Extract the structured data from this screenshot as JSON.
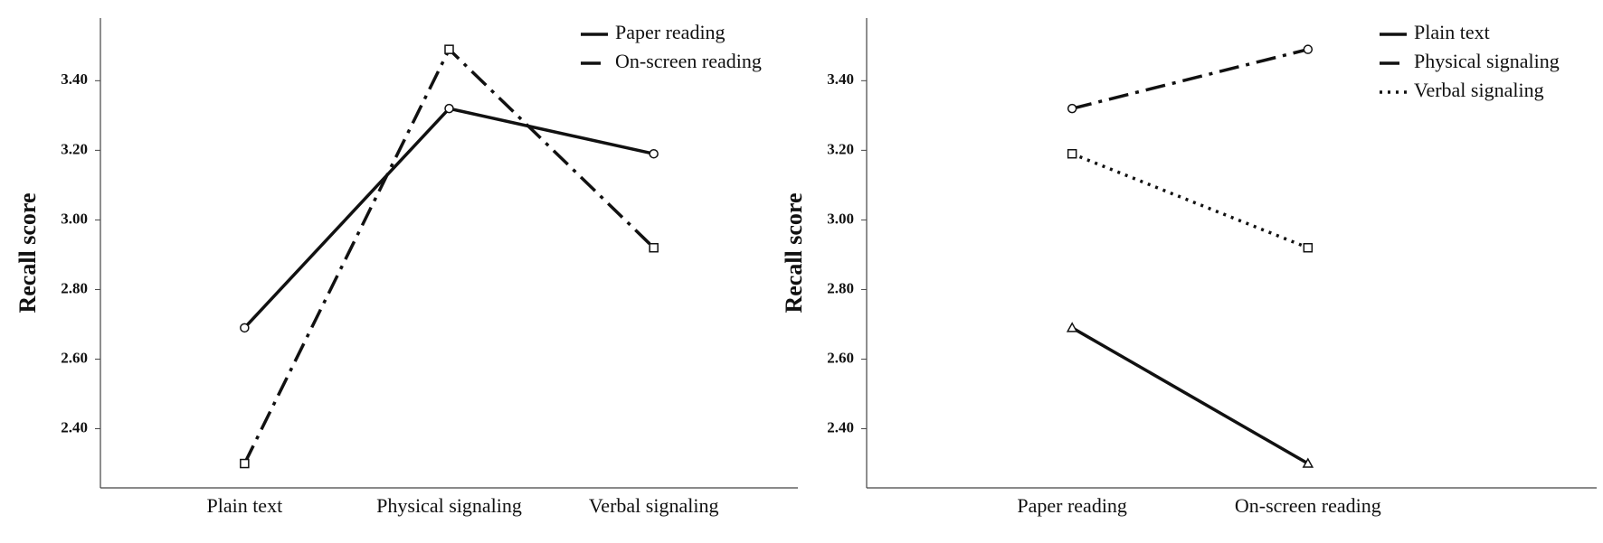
{
  "chart_data": [
    {
      "type": "line",
      "y_label": "Recall score",
      "categories": [
        "Plain text",
        "Physical signaling",
        "Verbal signaling"
      ],
      "series": [
        {
          "name": "Paper reading",
          "color": "#111111",
          "dash": "solid",
          "marker": "circle",
          "values": [
            2.69,
            3.32,
            3.19
          ]
        },
        {
          "name": "On-screen reading",
          "color": "#111111",
          "dash": "dashdot",
          "marker": "square",
          "values": [
            2.3,
            3.49,
            2.92
          ]
        }
      ],
      "ylim": [
        2.23,
        3.58
      ],
      "yticks": [
        {
          "value": 2.4,
          "label": "2.40"
        },
        {
          "value": 2.6,
          "label": "2.60"
        },
        {
          "value": 2.8,
          "label": "2.80"
        },
        {
          "value": 3.0,
          "label": "3.00"
        },
        {
          "value": 3.2,
          "label": "3.20"
        },
        {
          "value": 3.4,
          "label": "3.40"
        }
      ],
      "grid": false,
      "legend": "upper right"
    },
    {
      "type": "line",
      "y_label": "Recall score",
      "categories": [
        "Paper reading",
        "On-screen reading"
      ],
      "series": [
        {
          "name": "Plain text",
          "color": "#111111",
          "dash": "solid",
          "marker": "triangle",
          "values": [
            2.69,
            2.3
          ]
        },
        {
          "name": "Physical signaling",
          "color": "#111111",
          "dash": "dashdot",
          "marker": "circle",
          "values": [
            3.32,
            3.49
          ]
        },
        {
          "name": "Verbal signaling",
          "color": "#111111",
          "dash": "dot",
          "marker": "square",
          "values": [
            3.19,
            2.92
          ]
        }
      ],
      "ylim": [
        2.23,
        3.58
      ],
      "yticks": [
        {
          "value": 2.4,
          "label": "2.40"
        },
        {
          "value": 2.6,
          "label": "2.60"
        },
        {
          "value": 2.8,
          "label": "2.80"
        },
        {
          "value": 3.0,
          "label": "3.00"
        },
        {
          "value": 3.2,
          "label": "3.20"
        },
        {
          "value": 3.4,
          "label": "3.40"
        }
      ],
      "grid": false,
      "legend": "upper right"
    }
  ]
}
